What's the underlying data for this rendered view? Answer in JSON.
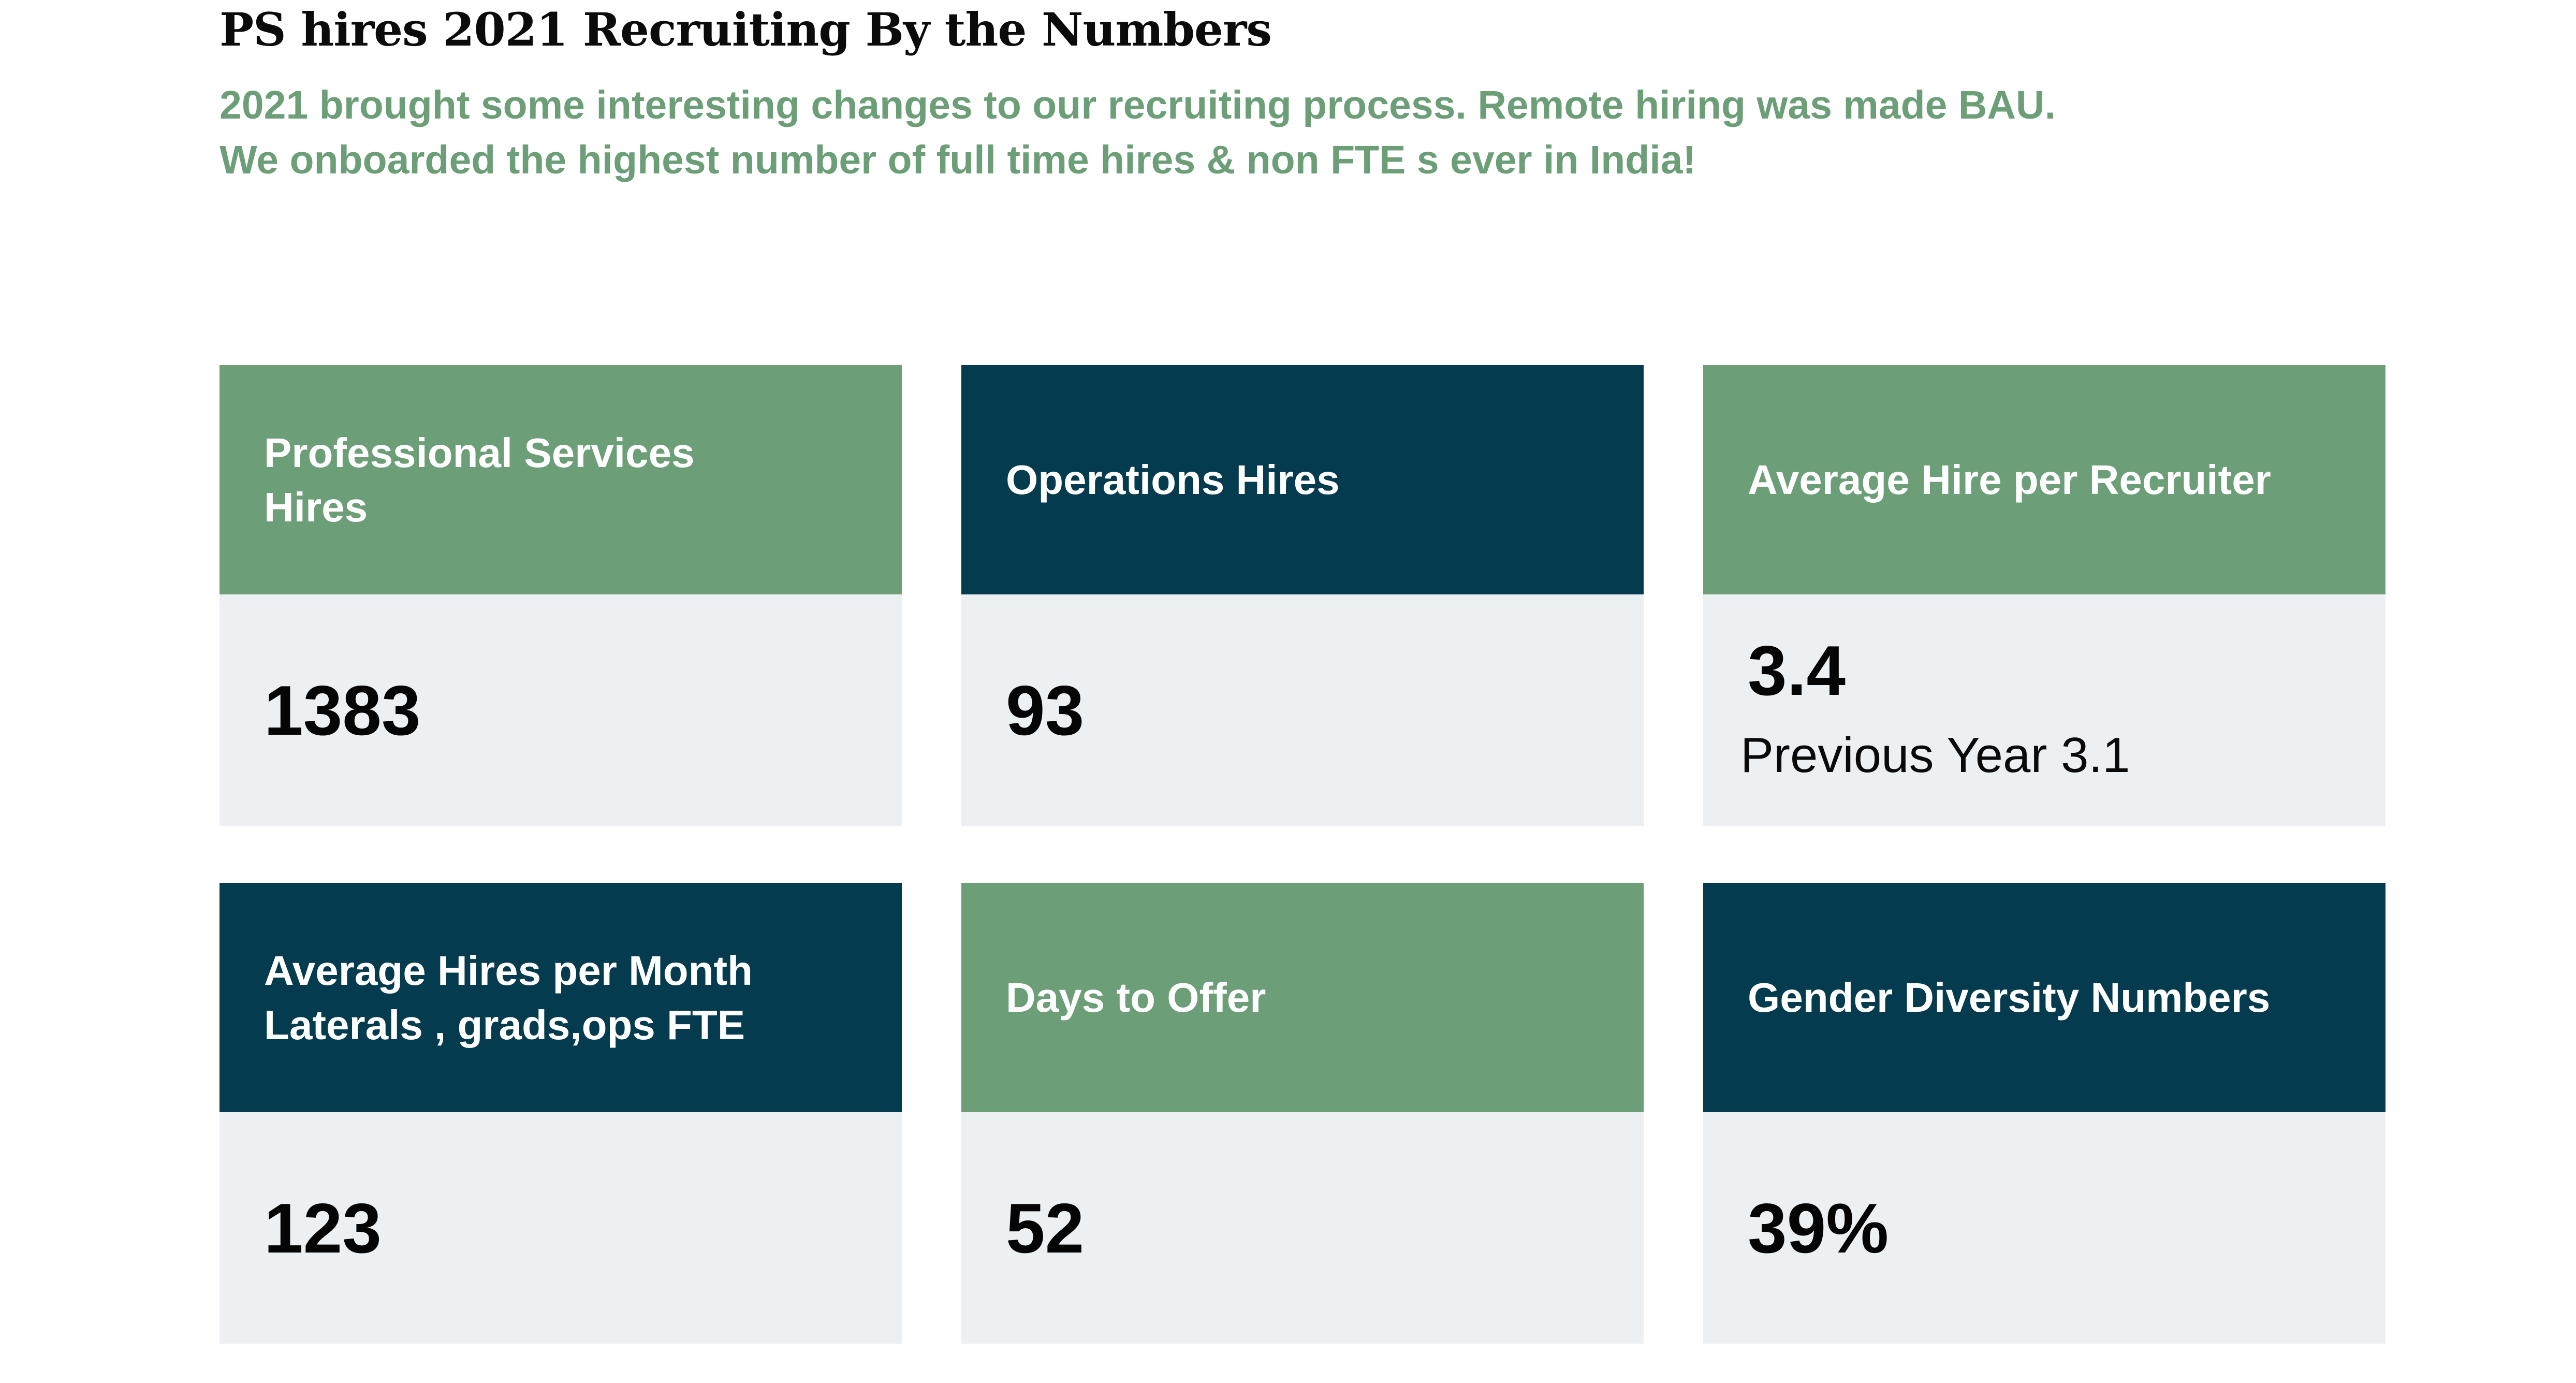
{
  "title": "PS hires 2021 Recruiting By the Numbers",
  "intro": {
    "line1": "2021 brought some interesting changes to our recruiting process. Remote hiring was made BAU.",
    "line2": "We onboarded the highest number of full time hires & non FTE s ever in India!"
  },
  "colors": {
    "green": "#6c9e78",
    "navy": "#043b4e",
    "card_body": "#ecf0f3"
  },
  "cards": [
    {
      "theme": "green",
      "label_lines": [
        "Professional Services",
        "Hires"
      ],
      "value": "1383"
    },
    {
      "theme": "navy",
      "label_lines": [
        "Operations Hires"
      ],
      "value": "93"
    },
    {
      "theme": "green",
      "label_lines": [
        "Average Hire per Recruiter"
      ],
      "value": "3.4",
      "note": "Previous Year 3.1"
    },
    {
      "theme": "navy",
      "label_lines": [
        "Average Hires per Month",
        "Laterals , grads,ops FTE"
      ],
      "value": "123"
    },
    {
      "theme": "green",
      "label_lines": [
        "Days to Offer"
      ],
      "value": "52"
    },
    {
      "theme": "navy",
      "label_lines": [
        "Gender Diversity Numbers"
      ],
      "value": "39%"
    }
  ]
}
